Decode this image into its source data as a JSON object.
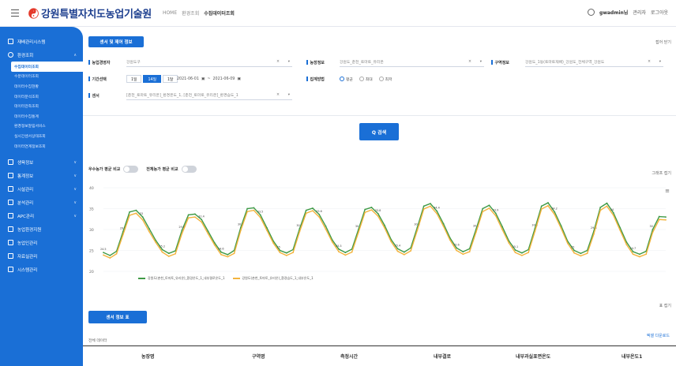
{
  "header": {
    "app_title": "강원특별자치도농업기술원",
    "breadcrumb": [
      "HOME",
      "환경조회",
      "수집데이터조회"
    ],
    "user_name": "gwadmin님",
    "user_action": "관리자",
    "logout_label": "로그아웃"
  },
  "sidebar": {
    "items": [
      {
        "label": "재배관리시스템"
      },
      {
        "label": "환경조회"
      },
      {
        "label": "생육정보"
      },
      {
        "label": "통계정보"
      },
      {
        "label": "시설관리"
      },
      {
        "label": "분석관리"
      },
      {
        "label": "APC관리"
      },
      {
        "label": "농업환경지원"
      },
      {
        "label": "농업인관리"
      },
      {
        "label": "자료실관리"
      },
      {
        "label": "시스템관리"
      }
    ],
    "subitems": [
      {
        "label": "수집데이터조회",
        "active": true
      },
      {
        "label": "수분데이터조회"
      },
      {
        "label": "데이터수집현황"
      },
      {
        "label": "데이터분석조회"
      },
      {
        "label": "데이터관측조회"
      },
      {
        "label": "데이터수집통계"
      },
      {
        "label": "환경정보알림서비스"
      },
      {
        "label": "실시간센서상태조회"
      },
      {
        "label": "데이터연계정보조회"
      }
    ]
  },
  "main": {
    "sensor_button": "센서 및 제어 정보",
    "fold_top": "접어 닫기",
    "filters": {
      "farm_label": "농업경영자",
      "farm_value": "강원도구",
      "farm_info_label": "농장정보",
      "farm_info_value": "강원도_춘천_토마토_유리온",
      "zone_label": "구역정보",
      "zone_value": "강원도_1동(토마토재배)_강원도_전체구역_강원도",
      "period_label": "기간선택",
      "period_buttons": [
        "1일",
        "14일",
        "1달"
      ],
      "period_active": "14일",
      "date_from": "2021-06-01",
      "date_to": "2021-06-09",
      "agg_label": "집계방법",
      "agg_options": [
        "평균",
        "최대",
        "최저"
      ],
      "agg_active": "평균",
      "sensor_label": "센서",
      "sensor_value": "[춘천_토마토_유리온]_환경온도_1, [춘천_토마토_유리온]_환경습도_1"
    },
    "search_button": "Q 검색",
    "toggles": [
      {
        "label": "우수농가 평균 비교"
      },
      {
        "label": "전체농가 평균 비교"
      }
    ],
    "graph_fold": "그래프 접기",
    "table_button": "센서 정보 표",
    "table_count": "전체 데이터",
    "table_fold": "표 접기",
    "table_excel": "엑셀 다운로드",
    "table_columns": [
      "농장명",
      "구역명",
      "측정시간",
      "내부결로",
      "내부과실표면온도",
      "내부온도1"
    ]
  },
  "chart_data": {
    "type": "line",
    "ylim": [
      20,
      40
    ],
    "yticks": [
      20,
      25,
      30,
      35,
      40
    ],
    "series": [
      {
        "name": "강원도(춘천_토마토_유리온)_환경온도_1_내부결로온도_1",
        "color": "#3f9a46",
        "values": [
          24.5,
          23.8,
          24.8,
          29.5,
          34.2,
          34.6,
          33.0,
          30.2,
          27.4,
          25.2,
          24.3,
          24.9,
          29.8,
          33.5,
          33.7,
          32.4,
          29.6,
          26.8,
          24.6,
          24.0,
          25.0,
          30.5,
          35.0,
          35.2,
          33.5,
          30.4,
          27.2,
          25.0,
          24.4,
          25.2,
          30.2,
          34.6,
          35.1,
          33.6,
          30.8,
          27.5,
          25.3,
          24.5,
          25.3,
          30.0,
          34.8,
          35.3,
          33.8,
          31.0,
          27.6,
          25.4,
          24.6,
          25.6,
          30.5,
          35.6,
          36.2,
          34.4,
          31.4,
          28.0,
          25.6,
          24.7,
          25.4,
          30.1,
          35.0,
          35.8,
          33.9,
          30.7,
          27.3,
          25.1,
          24.4,
          25.2,
          30.3,
          35.6,
          36.4,
          34.2,
          30.9,
          27.2,
          25.0,
          24.3,
          25.0,
          29.6,
          35.3,
          36.3,
          34.0,
          30.5,
          27.0,
          24.7,
          24.1,
          24.8,
          30.0,
          33.1,
          33.0
        ]
      },
      {
        "name": "강원도(춘천_토마토_유리온)_환경습도_1_내부온도_1",
        "color": "#f3b33d",
        "values": [
          23.9,
          23.2,
          24.2,
          28.8,
          33.4,
          33.9,
          32.3,
          29.5,
          26.9,
          24.6,
          23.6,
          24.2,
          29.0,
          32.8,
          33.0,
          31.8,
          29.0,
          26.3,
          24.0,
          23.5,
          24.3,
          29.8,
          34.3,
          34.6,
          32.9,
          29.8,
          26.7,
          24.5,
          23.8,
          24.5,
          29.5,
          33.9,
          34.5,
          33.0,
          30.1,
          27.0,
          24.7,
          23.9,
          24.6,
          29.3,
          34.1,
          34.7,
          33.2,
          30.4,
          27.1,
          24.8,
          24.0,
          24.9,
          29.8,
          34.9,
          35.6,
          33.8,
          30.8,
          27.5,
          25.0,
          24.1,
          24.7,
          29.4,
          34.3,
          35.1,
          33.3,
          30.0,
          26.8,
          24.5,
          23.8,
          24.5,
          29.6,
          34.9,
          35.7,
          33.6,
          30.3,
          26.7,
          24.4,
          23.7,
          24.3,
          28.9,
          34.6,
          35.6,
          33.4,
          29.9,
          26.4,
          24.1,
          23.5,
          24.1,
          29.3,
          32.4,
          32.3
        ]
      }
    ]
  }
}
